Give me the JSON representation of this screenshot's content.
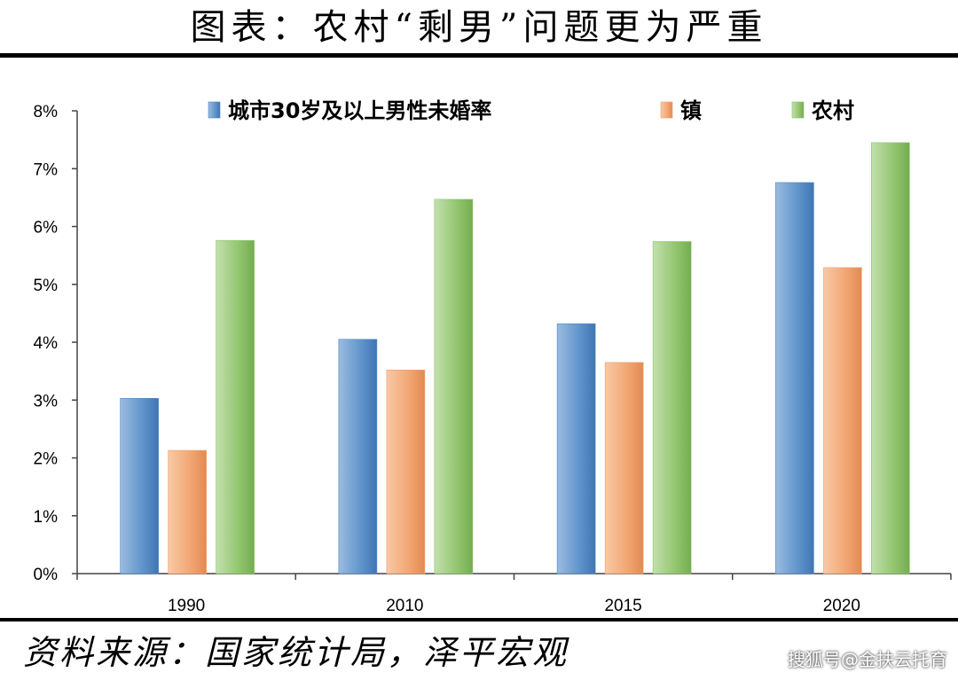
{
  "title": "图表：农村“剩男”问题更为严重",
  "source": "资料来源：国家统计局，泽平宏观",
  "watermark": "搜狐号@金扶云托育",
  "colors": {
    "blue": "#4f86c1",
    "orange": "#f0a06e",
    "green": "#8dc26a"
  },
  "chart_data": {
    "type": "bar",
    "title": "图表：农村“剩男”问题更为严重",
    "xlabel": "",
    "ylabel": "",
    "categories": [
      "1990",
      "2010",
      "2015",
      "2020"
    ],
    "series": [
      {
        "name": "城市30岁及以上男性未婚率",
        "values": [
          3.03,
          4.05,
          4.32,
          6.76
        ],
        "color": "blue"
      },
      {
        "name": "镇",
        "values": [
          2.13,
          3.52,
          3.65,
          5.29
        ],
        "color": "orange"
      },
      {
        "name": "农村",
        "values": [
          5.76,
          6.47,
          5.74,
          7.45
        ],
        "color": "green"
      }
    ],
    "ylim": [
      0,
      8
    ],
    "yticks": [
      "0%",
      "1%",
      "2%",
      "3%",
      "4%",
      "5%",
      "6%",
      "7%",
      "8%"
    ],
    "grid": false,
    "legend": "top"
  }
}
